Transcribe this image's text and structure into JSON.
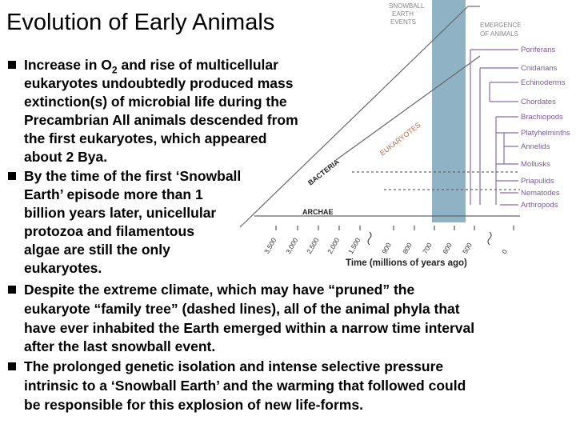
{
  "title": "Evolution of Early Animals",
  "bullets": [
    {
      "first_start": "Increase in O",
      "first_sub": "2",
      "first_end": " and rise of multicellular",
      "lines": [
        "eukaryotes undoubtedly produced mass",
        "extinction(s) of microbial life during the",
        "Precambrian All animals descended from",
        "the first eukaryotes, which appeared",
        "about 2 Bya."
      ]
    },
    {
      "lines": [
        "By the time of the first ‘Snowball",
        "Earth’ episode more than 1",
        "billion years later, unicellular",
        "protozoa and filamentous",
        "algae are still the only",
        "eukaryotes."
      ]
    },
    {
      "lines": [
        "Despite the extreme climate, which may have “pruned” the",
        "eukaryote “family tree” (dashed lines), all of the animal phyla that",
        "have ever inhabited the Earth emerged within a narrow time interval",
        "after the last snowball event."
      ]
    },
    {
      "lines": [
        "The prolonged genetic isolation and intense selective pressure",
        "intrinsic to a ‘Snowball Earth’ and the warming that followed could",
        "be responsible for this explosion of new life-forms."
      ]
    }
  ],
  "figure": {
    "snowball_label": [
      "SNOWBALL",
      "EARTH",
      "EVENTS"
    ],
    "emergence_label": [
      "EMERGENCE",
      "OF ANIMALS"
    ],
    "phyla": [
      "Poriferans",
      "Cnidarians",
      "Echinoderms",
      "Chordates",
      "Brachiopods",
      "Platyhelminths",
      "Annelids",
      "Mollusks",
      "Priapulids",
      "Nematodes",
      "Arthropods"
    ],
    "bacteria": "BACTERIA",
    "eukaryotes": "EUKARYOTES",
    "archae": "ARCHAE",
    "time_ticks": [
      "3,500",
      "3,000",
      "2,500",
      "2,000",
      "1,500",
      "900",
      "800",
      "700",
      "600",
      "500",
      "0"
    ],
    "time_label": "Time (millions of years ago)"
  }
}
